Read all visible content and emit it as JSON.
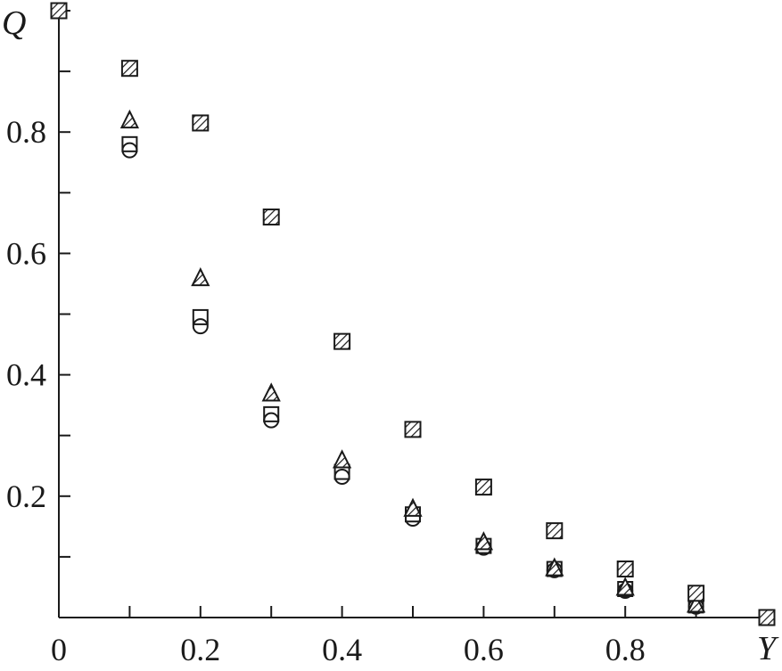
{
  "chart_data": {
    "type": "scatter",
    "title": "",
    "xlabel": "Y",
    "ylabel": "Q",
    "xlim": [
      0,
      1.0
    ],
    "ylim": [
      0,
      1.0
    ],
    "x_tick_labels": [
      {
        "value": 0,
        "label": "0"
      },
      {
        "value": 0.2,
        "label": "0.2"
      },
      {
        "value": 0.4,
        "label": "0.4"
      },
      {
        "value": 0.6,
        "label": "0.6"
      },
      {
        "value": 0.8,
        "label": "0.8"
      }
    ],
    "y_tick_labels": [
      {
        "value": 0.2,
        "label": "0.2"
      },
      {
        "value": 0.4,
        "label": "0.4"
      },
      {
        "value": 0.6,
        "label": "0.6"
      },
      {
        "value": 0.8,
        "label": "0.8"
      }
    ],
    "x_minor_ticks": [
      0.1,
      0.3,
      0.5,
      0.7,
      0.9
    ],
    "y_minor_ticks": [
      0.1,
      0.3,
      0.5,
      0.7,
      0.9
    ],
    "grid": false,
    "legend": "none",
    "series": [
      {
        "marker": "hatched-square",
        "color": "#1a1a1a",
        "x": [
          0,
          0.1,
          0.2,
          0.3,
          0.4,
          0.5,
          0.6,
          0.7,
          0.8,
          0.9,
          1.0
        ],
        "y": [
          1.0,
          0.905,
          0.815,
          0.66,
          0.455,
          0.31,
          0.215,
          0.143,
          0.08,
          0.04,
          0.0
        ]
      },
      {
        "marker": "hatched-triangle",
        "color": "#1a1a1a",
        "x": [
          0.1,
          0.2,
          0.3,
          0.4,
          0.5,
          0.6,
          0.7,
          0.8,
          0.9
        ],
        "y": [
          0.82,
          0.56,
          0.37,
          0.26,
          0.18,
          0.125,
          0.082,
          0.05,
          0.022
        ]
      },
      {
        "marker": "open-square",
        "color": "#1a1a1a",
        "x": [
          0.1,
          0.2,
          0.3,
          0.4,
          0.5,
          0.6,
          0.7,
          0.8,
          0.9
        ],
        "y": [
          0.78,
          0.495,
          0.335,
          0.24,
          0.17,
          0.118,
          0.08,
          0.047,
          0.02
        ]
      },
      {
        "marker": "open-circle",
        "color": "#1a1a1a",
        "x": [
          0.1,
          0.2,
          0.3,
          0.4,
          0.5,
          0.6,
          0.7,
          0.8,
          0.9
        ],
        "y": [
          0.77,
          0.48,
          0.325,
          0.232,
          0.163,
          0.115,
          0.078,
          0.044,
          0.018
        ]
      }
    ]
  }
}
